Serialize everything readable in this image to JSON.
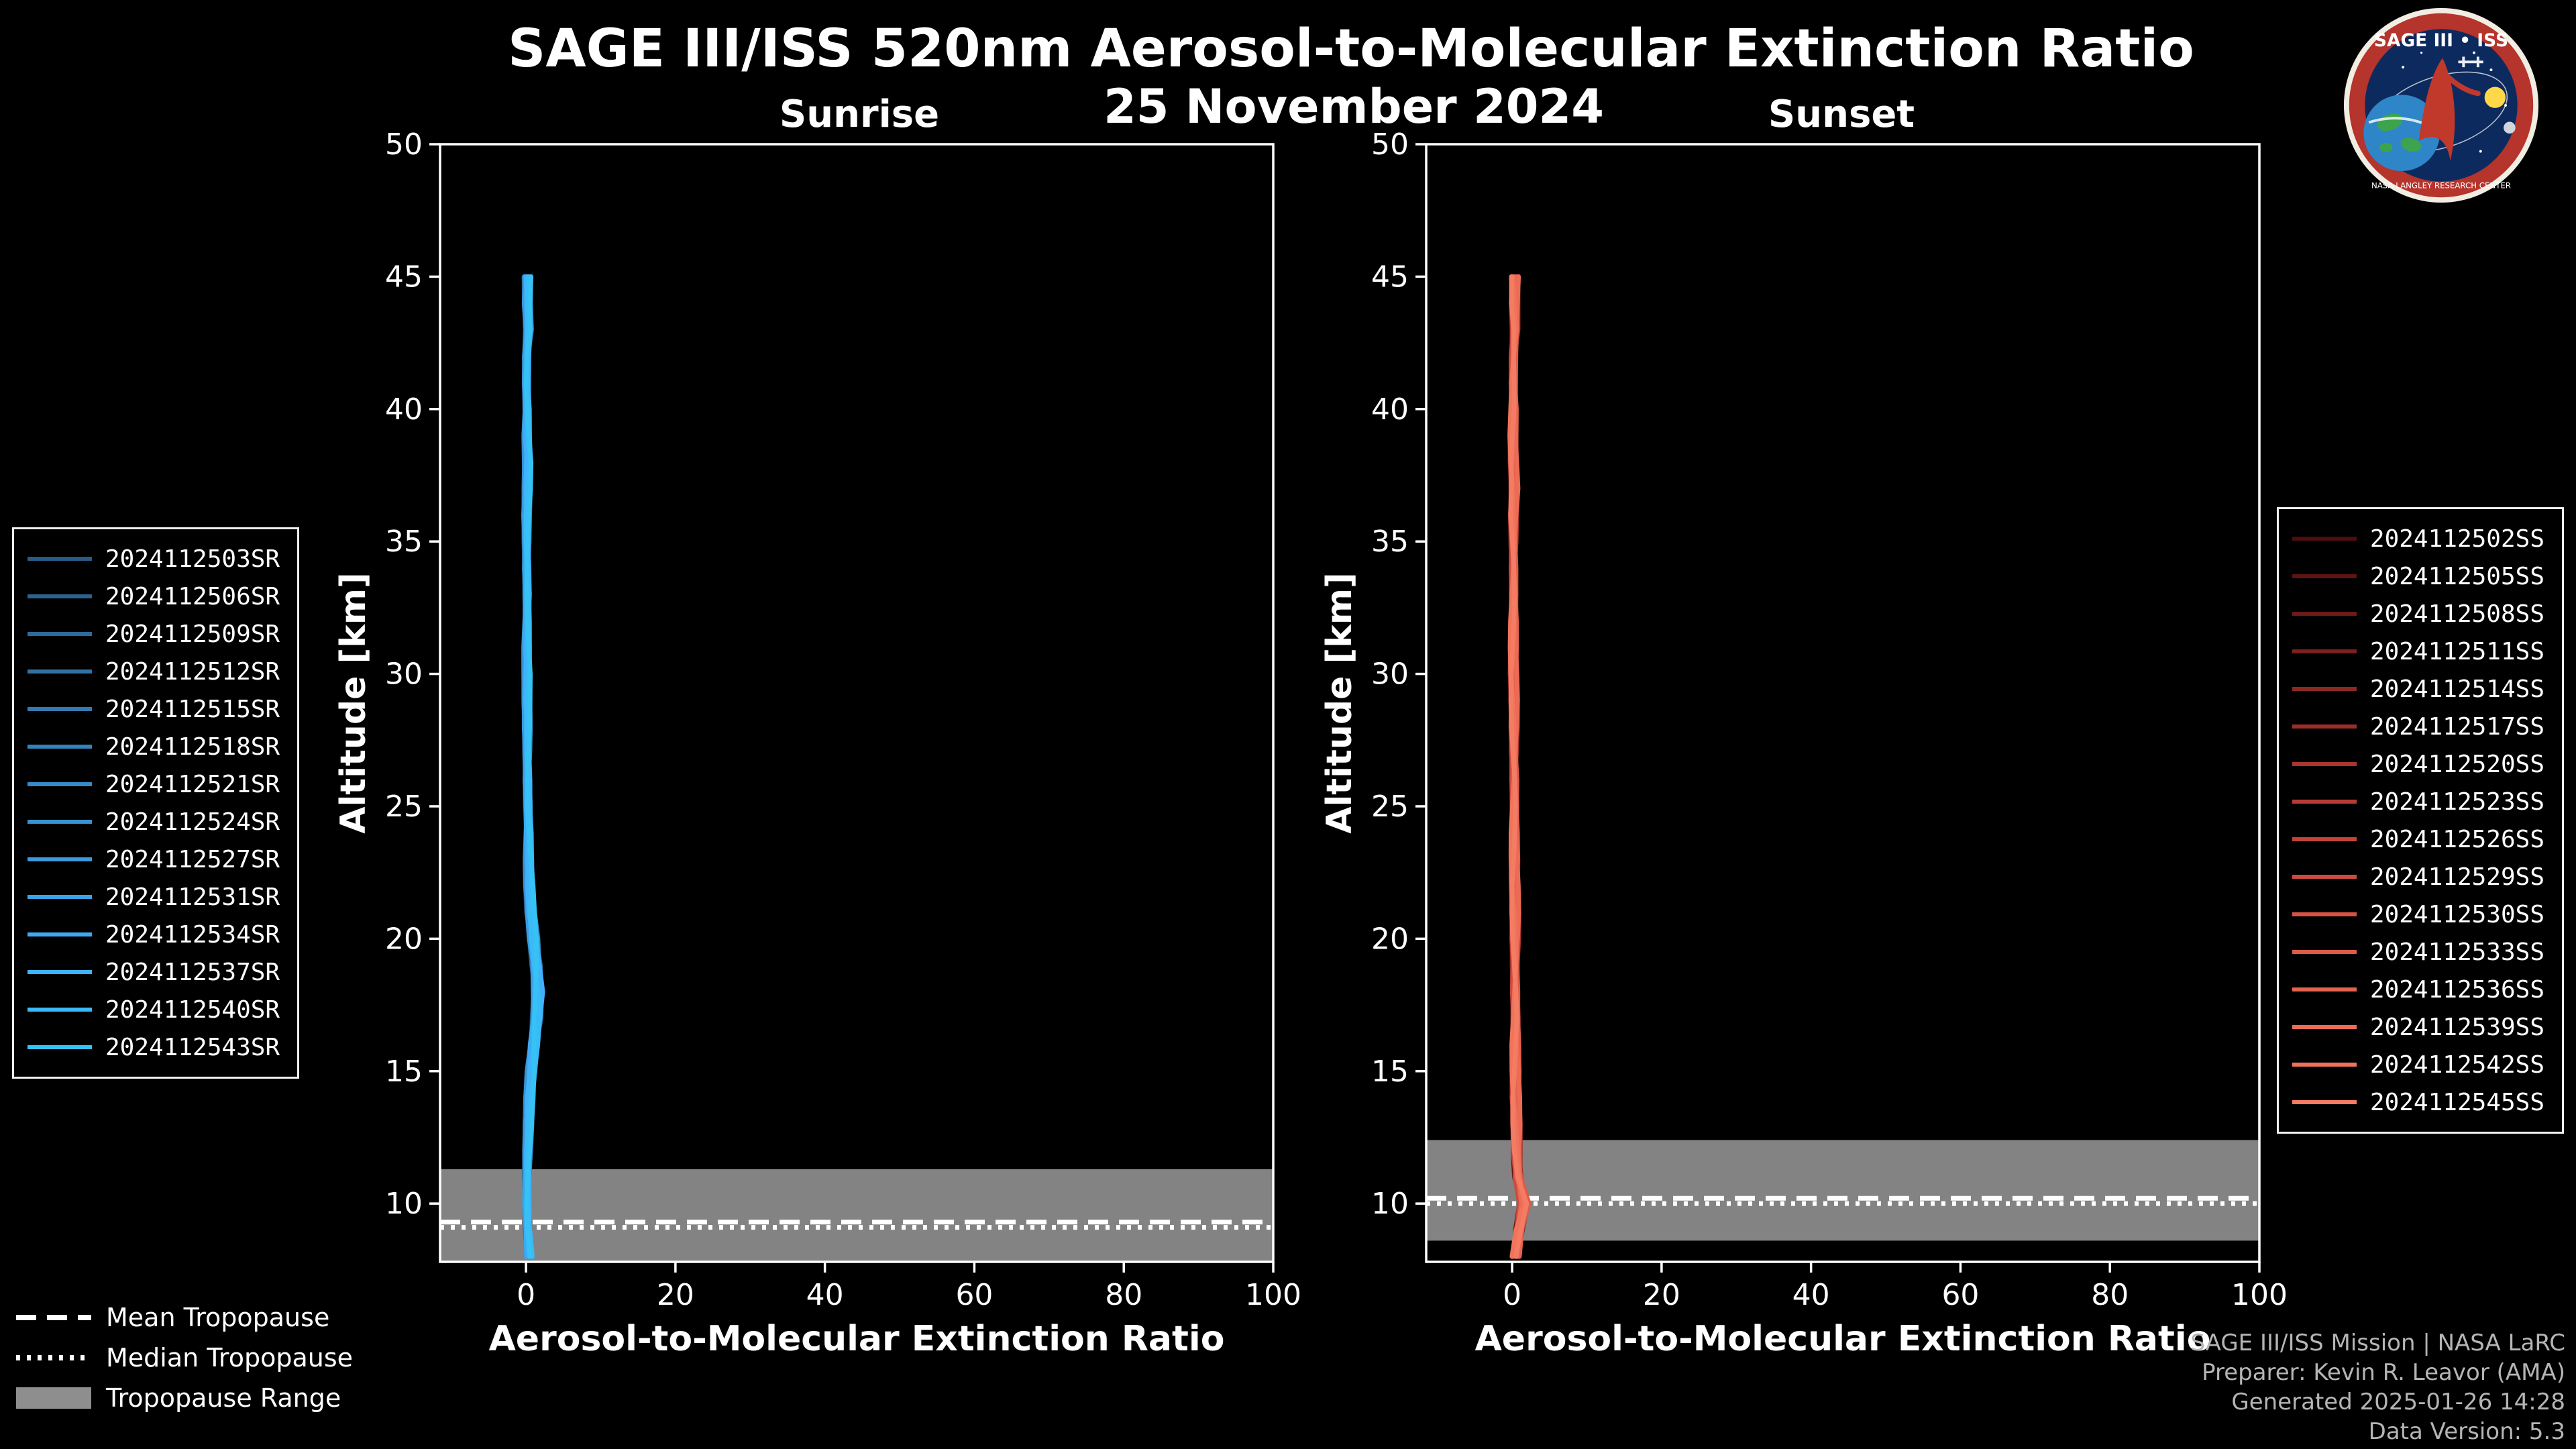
{
  "header": {
    "title": "SAGE III/ISS 520nm Aerosol-to-Molecular Extinction Ratio",
    "subtitle": "25 November 2024"
  },
  "logo": {
    "title": "SAGE III • ISS",
    "ring_text": "NASA LANGLEY RESEARCH CENTER"
  },
  "tropopause_legend": {
    "mean": "Mean Tropopause",
    "median": "Median Tropopause",
    "range": "Tropopause Range"
  },
  "credits": {
    "line1": "SAGE III/ISS Mission | NASA LaRC",
    "line2": "Preparer: Kevin R. Leavor (AMA)",
    "line3": "Generated 2025-01-26 14:28",
    "line4": "Data Version: 5.3"
  },
  "chart_data": {
    "type": "line",
    "title": "SAGE III/ISS 520nm Aerosol-to-Molecular Extinction Ratio",
    "subtitle": "25 November 2024",
    "panels": [
      {
        "name": "Sunrise",
        "xlabel": "Aerosol-to-Molecular Extinction Ratio",
        "ylabel": "Altitude [km]",
        "x_range": [
          -11.5,
          100
        ],
        "y_range": [
          7.8,
          50
        ],
        "x_ticks": [
          0,
          20,
          40,
          60,
          80,
          100
        ],
        "y_ticks": [
          10,
          15,
          20,
          25,
          30,
          35,
          40,
          45,
          50
        ],
        "altitudes_km": [
          8,
          9,
          10,
          11,
          12,
          13,
          14,
          15,
          16,
          17,
          18,
          19,
          20,
          21,
          22,
          23,
          24,
          25,
          26,
          27,
          28,
          29,
          30,
          31,
          32,
          33,
          34,
          35,
          36,
          37,
          38,
          39,
          40,
          41,
          42,
          43,
          44,
          45
        ],
        "mean_profile": [
          0.4,
          0.2,
          0.1,
          0.15,
          0.2,
          0.3,
          0.45,
          0.7,
          1.0,
          1.4,
          1.6,
          1.4,
          1.0,
          0.6,
          0.45,
          0.35,
          0.3,
          0.25,
          0.2,
          0.2,
          0.15,
          0.1,
          0.15,
          0.1,
          0.1,
          0.15,
          0.1,
          0.1,
          0.05,
          0.15,
          0.25,
          0.1,
          0.1,
          0.05,
          0.1,
          0.35,
          0.15,
          0.2
        ],
        "tropopause": {
          "mean_km": 9.3,
          "median_km": 9.1,
          "range_km": [
            7.8,
            11.3
          ]
        },
        "series": [
          {
            "label": "2024112503SR",
            "color": "#2a5a85"
          },
          {
            "label": "2024112506SR",
            "color": "#2c6290"
          },
          {
            "label": "2024112509SR",
            "color": "#2e6a9b"
          },
          {
            "label": "2024112512SR",
            "color": "#3072a6"
          },
          {
            "label": "2024112515SR",
            "color": "#327ab1"
          },
          {
            "label": "2024112518SR",
            "color": "#3482bc"
          },
          {
            "label": "2024112521SR",
            "color": "#368ac7"
          },
          {
            "label": "2024112524SR",
            "color": "#3892d2"
          },
          {
            "label": "2024112527SR",
            "color": "#3a9add"
          },
          {
            "label": "2024112531SR",
            "color": "#3ca2e8"
          },
          {
            "label": "2024112534SR",
            "color": "#3eaaf3"
          },
          {
            "label": "2024112537SR",
            "color": "#3fb2fb"
          },
          {
            "label": "2024112540SR",
            "color": "#3bbaf8"
          },
          {
            "label": "2024112543SR",
            "color": "#35c2f5"
          }
        ]
      },
      {
        "name": "Sunset",
        "xlabel": "Aerosol-to-Molecular Extinction Ratio",
        "ylabel": "Altitude [km]",
        "x_range": [
          -11.5,
          100
        ],
        "y_range": [
          7.8,
          50
        ],
        "x_ticks": [
          0,
          20,
          40,
          60,
          80,
          100
        ],
        "y_ticks": [
          10,
          15,
          20,
          25,
          30,
          35,
          40,
          45,
          50
        ],
        "altitudes_km": [
          8,
          9,
          10,
          11,
          12,
          13,
          14,
          15,
          16,
          17,
          18,
          19,
          20,
          21,
          22,
          23,
          24,
          25,
          26,
          27,
          28,
          29,
          30,
          31,
          32,
          33,
          34,
          35,
          36,
          37,
          38,
          39,
          40,
          41,
          42,
          43,
          44,
          45
        ],
        "mean_profile": [
          0.5,
          0.9,
          1.6,
          0.8,
          0.6,
          0.55,
          0.5,
          0.5,
          0.45,
          0.45,
          0.4,
          0.4,
          0.4,
          0.4,
          0.35,
          0.35,
          0.3,
          0.3,
          0.3,
          0.25,
          0.25,
          0.25,
          0.2,
          0.2,
          0.2,
          0.2,
          0.2,
          0.2,
          0.15,
          0.3,
          0.2,
          0.15,
          0.2,
          0.15,
          0.2,
          0.4,
          0.3,
          0.35
        ],
        "tropopause": {
          "mean_km": 10.2,
          "median_km": 10.0,
          "range_km": [
            8.6,
            12.4
          ]
        },
        "series": [
          {
            "label": "2024112502SS",
            "color": "#4f0d0d"
          },
          {
            "label": "2024112505SS",
            "color": "#5e1413"
          },
          {
            "label": "2024112508SS",
            "color": "#6d1a18"
          },
          {
            "label": "2024112511SS",
            "color": "#7c211e"
          },
          {
            "label": "2024112514SS",
            "color": "#8b2823"
          },
          {
            "label": "2024112517SS",
            "color": "#9a2f29"
          },
          {
            "label": "2024112520SS",
            "color": "#a9352e"
          },
          {
            "label": "2024112523SS",
            "color": "#b83c34"
          },
          {
            "label": "2024112526SS",
            "color": "#c44339"
          },
          {
            "label": "2024112529SS",
            "color": "#cd4b3f"
          },
          {
            "label": "2024112530SS",
            "color": "#d65344"
          },
          {
            "label": "2024112533SS",
            "color": "#de5b4a"
          },
          {
            "label": "2024112536SS",
            "color": "#e66350"
          },
          {
            "label": "2024112539SS",
            "color": "#ec6b55"
          },
          {
            "label": "2024112542SS",
            "color": "#f0735b"
          },
          {
            "label": "2024112545SS",
            "color": "#f47c63"
          }
        ]
      }
    ]
  }
}
